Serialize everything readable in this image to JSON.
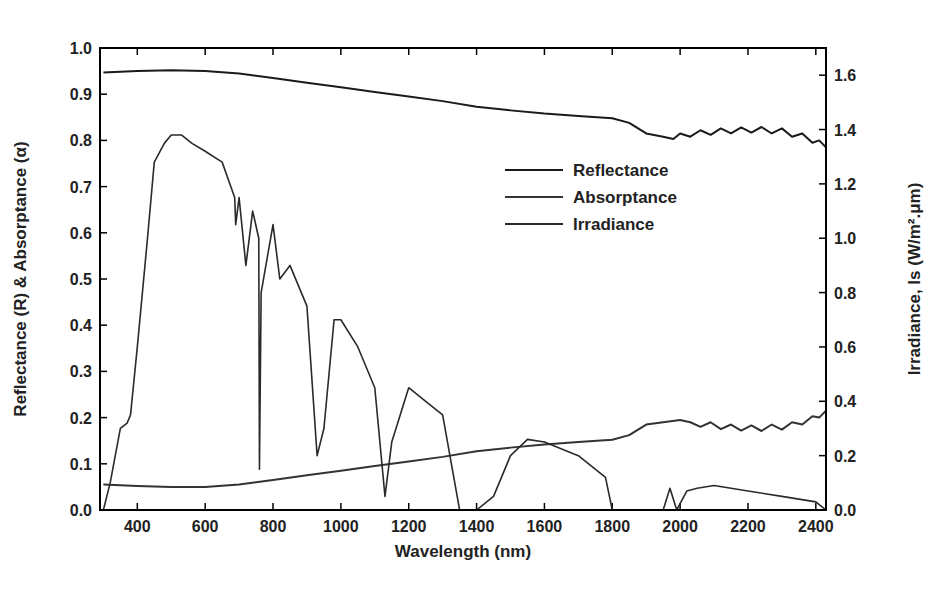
{
  "chart_data": {
    "type": "line",
    "x_label": "Wavelength (nm)",
    "y_label": "Reflectance (R) & Absorptance (α)",
    "y2_label": "Irradiance, Is (W/m².μm)",
    "xlim": [
      290,
      2430
    ],
    "xticks": [
      400,
      600,
      800,
      1000,
      1200,
      1400,
      1600,
      1800,
      2000,
      2200,
      2400
    ],
    "ylim": [
      0,
      1
    ],
    "yticks": [
      {
        "value": 0,
        "label": "0.0"
      },
      0.1,
      0.2,
      0.3,
      0.4,
      0.5,
      0.6,
      0.7,
      0.8,
      0.9,
      {
        "value": 1,
        "label": "1.0"
      }
    ],
    "y2lim": [
      0,
      1.7
    ],
    "y2ticks": [
      {
        "value": 0,
        "label": "0.0"
      },
      0.2,
      0.4,
      0.6,
      0.8,
      {
        "value": 1,
        "label": "1.0"
      },
      1.2,
      1.4,
      1.6
    ],
    "legend": "right",
    "series": [
      {
        "name": "Reflectance",
        "color": "#1a1a1a",
        "x": [
          300,
          400,
          500,
          600,
          700,
          800,
          900,
          1000,
          1100,
          1200,
          1300,
          1400,
          1500,
          1600,
          1700,
          1800,
          1850,
          1900,
          1950,
          1980,
          2000,
          2030,
          2060,
          2090,
          2120,
          2150,
          2180,
          2210,
          2240,
          2270,
          2300,
          2330,
          2360,
          2390,
          2410,
          2430
        ],
        "values": [
          0.947,
          0.95,
          0.952,
          0.95,
          0.945,
          0.935,
          0.925,
          0.915,
          0.905,
          0.895,
          0.885,
          0.873,
          0.865,
          0.858,
          0.853,
          0.848,
          0.838,
          0.815,
          0.808,
          0.803,
          0.815,
          0.808,
          0.822,
          0.812,
          0.826,
          0.815,
          0.828,
          0.817,
          0.829,
          0.815,
          0.826,
          0.808,
          0.815,
          0.795,
          0.8,
          0.785
        ]
      },
      {
        "name": "Absorptance",
        "color": "#333333",
        "x": [
          300,
          400,
          500,
          600,
          700,
          800,
          900,
          1000,
          1100,
          1200,
          1300,
          1400,
          1500,
          1600,
          1700,
          1800,
          1850,
          1900,
          1950,
          2000,
          2030,
          2060,
          2090,
          2120,
          2150,
          2180,
          2210,
          2240,
          2270,
          2300,
          2330,
          2360,
          2390,
          2410,
          2430
        ],
        "values": [
          0.055,
          0.052,
          0.05,
          0.05,
          0.055,
          0.065,
          0.075,
          0.085,
          0.095,
          0.105,
          0.115,
          0.127,
          0.135,
          0.142,
          0.147,
          0.152,
          0.162,
          0.185,
          0.19,
          0.195,
          0.19,
          0.18,
          0.19,
          0.175,
          0.185,
          0.172,
          0.183,
          0.171,
          0.185,
          0.174,
          0.19,
          0.185,
          0.203,
          0.2,
          0.215
        ]
      },
      {
        "name": "Irradiance",
        "color": "#2a2a2a",
        "axis": "y2",
        "x": [
          300,
          320,
          350,
          370,
          380,
          400,
          430,
          450,
          480,
          500,
          530,
          560,
          600,
          650,
          687,
          690,
          700,
          720,
          740,
          758,
          760,
          765,
          800,
          820,
          850,
          900,
          930,
          950,
          980,
          1000,
          1050,
          1100,
          1130,
          1150,
          1200,
          1250,
          1300,
          1350,
          1400,
          1450,
          1500,
          1550,
          1600,
          1700,
          1780,
          1800,
          1950,
          1970,
          1990,
          2020,
          2050,
          2100,
          2200,
          2300,
          2400,
          2430
        ],
        "values": [
          0,
          0.1,
          0.3,
          0.32,
          0.35,
          0.6,
          1.0,
          1.28,
          1.35,
          1.38,
          1.38,
          1.35,
          1.32,
          1.28,
          1.15,
          1.05,
          1.15,
          0.9,
          1.1,
          1.0,
          0.15,
          0.8,
          1.05,
          0.85,
          0.9,
          0.75,
          0.2,
          0.3,
          0.7,
          0.7,
          0.6,
          0.45,
          0.05,
          0.25,
          0.45,
          0.4,
          0.35,
          0,
          0,
          0.05,
          0.2,
          0.26,
          0.25,
          0.2,
          0.12,
          0,
          0,
          0.08,
          0,
          0.07,
          0.08,
          0.09,
          0.07,
          0.05,
          0.03,
          0
        ]
      }
    ]
  }
}
